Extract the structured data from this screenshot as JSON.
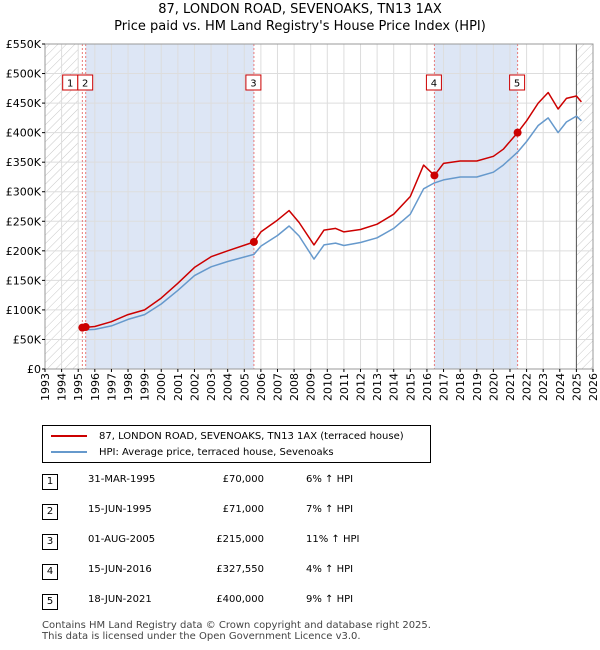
{
  "title_line1": "87, LONDON ROAD, SEVENOAKS, TN13 1AX",
  "title_line2": "Price paid vs. HM Land Registry's House Price Index (HPI)",
  "legend": {
    "property": "87, LONDON ROAD, SEVENOAKS, TN13 1AX (terraced house)",
    "hpi": "HPI: Average price, terraced house, Sevenoaks"
  },
  "colors": {
    "property": "#cc0000",
    "hpi": "#6699cc",
    "shade": "#dde6f5",
    "vline": "#e87a7a"
  },
  "sales": [
    {
      "num": "1",
      "date": "31-MAR-1995",
      "price": "£70,000",
      "hpi": "6% ↑ HPI"
    },
    {
      "num": "2",
      "date": "15-JUN-1995",
      "price": "£71,000",
      "hpi": "7% ↑ HPI"
    },
    {
      "num": "3",
      "date": "01-AUG-2005",
      "price": "£215,000",
      "hpi": "11% ↑ HPI"
    },
    {
      "num": "4",
      "date": "15-JUN-2016",
      "price": "£327,550",
      "hpi": "4% ↑ HPI"
    },
    {
      "num": "5",
      "date": "18-JUN-2021",
      "price": "£400,000",
      "hpi": "9% ↑ HPI"
    }
  ],
  "footer": {
    "line1": "Contains HM Land Registry data © Crown copyright and database right 2025.",
    "line2": "This data is licensed under the Open Government Licence v3.0."
  },
  "chart_data": {
    "type": "line",
    "xlim": [
      1993,
      2026
    ],
    "ylim": [
      0,
      550000
    ],
    "x_ticks": [
      1993,
      1994,
      1995,
      1996,
      1997,
      1998,
      1999,
      2000,
      2001,
      2002,
      2003,
      2004,
      2005,
      2006,
      2007,
      2008,
      2009,
      2010,
      2011,
      2012,
      2013,
      2014,
      2015,
      2016,
      2017,
      2018,
      2019,
      2020,
      2021,
      2022,
      2023,
      2024,
      2025,
      2026
    ],
    "y_ticks": [
      0,
      50000,
      100000,
      150000,
      200000,
      250000,
      300000,
      350000,
      400000,
      450000,
      500000,
      550000
    ],
    "y_tick_labels": [
      "£0",
      "£50K",
      "£100K",
      "£150K",
      "£200K",
      "£250K",
      "£300K",
      "£350K",
      "£400K",
      "£450K",
      "£500K",
      "£550K"
    ],
    "hatch_before": 1995.0,
    "hatch_after": 2025.0,
    "shaded_spans": [
      [
        1995.45,
        2005.58
      ],
      [
        2016.45,
        2021.46
      ]
    ],
    "markers": [
      {
        "label": "1",
        "x": 1995.25,
        "y": 70000
      },
      {
        "label": "2",
        "x": 1995.45,
        "y": 71000
      },
      {
        "label": "3",
        "x": 2005.58,
        "y": 215000
      },
      {
        "label": "4",
        "x": 2016.45,
        "y": 327550
      },
      {
        "label": "5",
        "x": 2021.46,
        "y": 400000
      }
    ],
    "box_labels": [
      {
        "label": "2",
        "x": 1995.45
      },
      {
        "label": "3",
        "x": 2005.58
      },
      {
        "label": "4",
        "x": 2016.45
      },
      {
        "label": "5",
        "x": 2021.46
      }
    ],
    "series": [
      {
        "name": "87, LONDON ROAD, SEVENOAKS, TN13 1AX (terraced house)",
        "x": [
          1995.25,
          1996,
          1997,
          1998,
          1999,
          2000,
          2001,
          2002,
          2003,
          2004,
          2005.58,
          2006,
          2007,
          2007.7,
          2008.3,
          2009.2,
          2009.8,
          2010.5,
          2011,
          2012,
          2013,
          2014,
          2015,
          2015.8,
          2016.45,
          2017,
          2018,
          2019,
          2020,
          2020.6,
          2021.46,
          2022,
          2022.7,
          2023.3,
          2023.9,
          2024.4,
          2025.0,
          2025.3
        ],
        "y": [
          70000,
          72000,
          80000,
          92000,
          100000,
          120000,
          145000,
          172000,
          190000,
          200000,
          215000,
          232000,
          252000,
          268000,
          248000,
          210000,
          235000,
          238000,
          232000,
          236000,
          245000,
          262000,
          292000,
          345000,
          327550,
          348000,
          352000,
          352000,
          360000,
          372000,
          400000,
          420000,
          450000,
          468000,
          440000,
          458000,
          462000,
          452000
        ]
      },
      {
        "name": "HPI: Average price, terraced house, Sevenoaks",
        "x": [
          1995.25,
          1996,
          1997,
          1998,
          1999,
          2000,
          2001,
          2002,
          2003,
          2004,
          2005.58,
          2006,
          2007,
          2007.7,
          2008.3,
          2009.2,
          2009.8,
          2010.5,
          2011,
          2012,
          2013,
          2014,
          2015,
          2015.8,
          2016.45,
          2017,
          2018,
          2019,
          2020,
          2020.6,
          2021.46,
          2022,
          2022.7,
          2023.3,
          2023.9,
          2024.4,
          2025.0,
          2025.3
        ],
        "y": [
          66000,
          67000,
          73000,
          84000,
          92000,
          110000,
          133000,
          158000,
          173000,
          182000,
          194000,
          208000,
          226000,
          242000,
          225000,
          186000,
          210000,
          213000,
          209000,
          214000,
          222000,
          238000,
          262000,
          305000,
          315000,
          320000,
          325000,
          325000,
          333000,
          345000,
          367000,
          385000,
          412000,
          425000,
          400000,
          418000,
          428000,
          420000
        ]
      }
    ]
  }
}
